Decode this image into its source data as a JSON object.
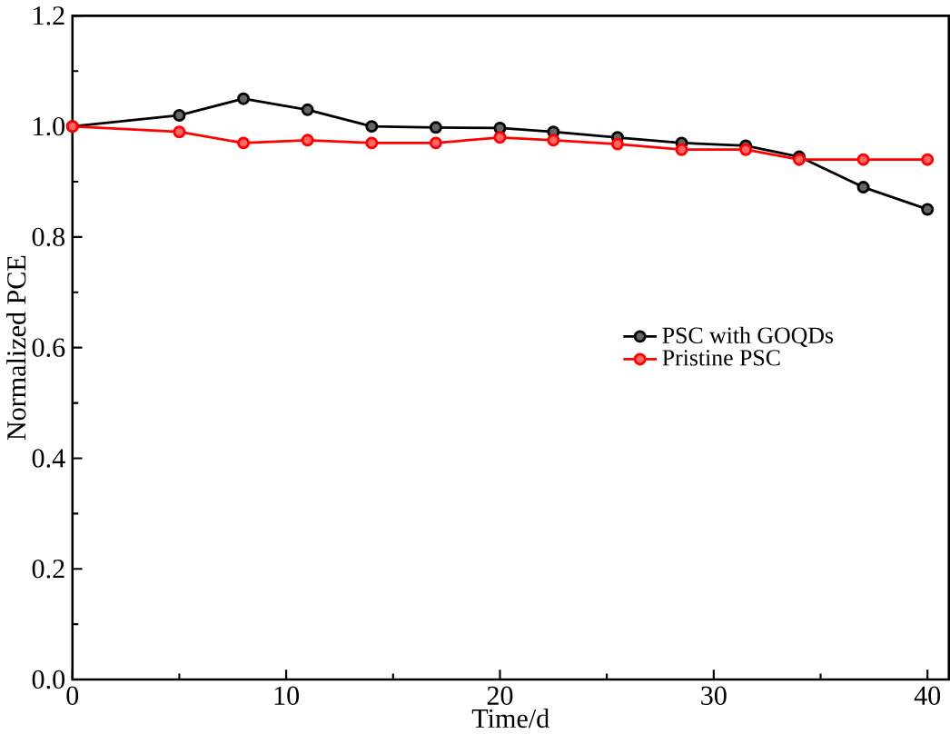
{
  "chart_data": {
    "type": "line",
    "xlabel": "Time/d",
    "ylabel": "Normalized PCE",
    "x": [
      0,
      5,
      8,
      11,
      14,
      17,
      20,
      22.5,
      25.5,
      28.5,
      31.5,
      34,
      37,
      40
    ],
    "series": [
      {
        "name": "PSC with GOQDs",
        "color": "#000000",
        "values": [
          1.0,
          1.02,
          1.05,
          1.03,
          1.0,
          0.998,
          0.997,
          0.99,
          0.98,
          0.97,
          0.965,
          0.945,
          0.89,
          0.85
        ]
      },
      {
        "name": "Pristine PSC",
        "color": "#ff0000",
        "values": [
          1.0,
          0.99,
          0.97,
          0.975,
          0.97,
          0.97,
          0.98,
          0.975,
          0.968,
          0.958,
          0.958,
          0.94,
          0.94,
          0.94
        ]
      }
    ],
    "xlim": [
      0,
      41
    ],
    "xticks": [
      0,
      10,
      20,
      30,
      40
    ],
    "ylim": [
      0,
      1.2
    ],
    "yticks": [
      {
        "value": 0,
        "label": "0.0"
      },
      0.2,
      0.4,
      0.6,
      0.8,
      {
        "value": 1,
        "label": "1.0"
      },
      1.2
    ],
    "grid": false,
    "legend": "right",
    "marker": "circle",
    "line_style": "solid"
  }
}
